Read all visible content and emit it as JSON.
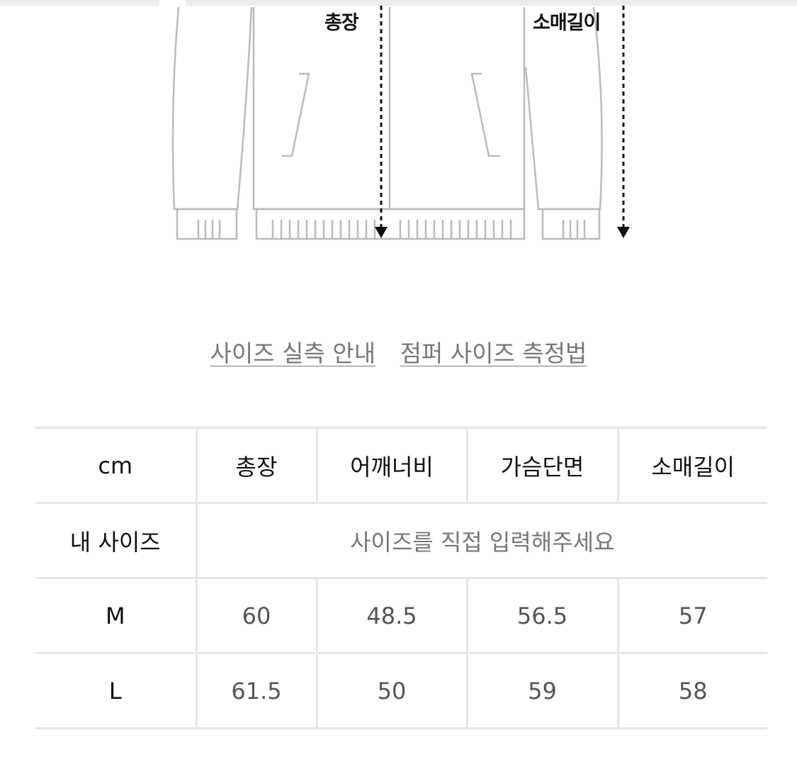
{
  "diagram": {
    "length_label": "총장",
    "sleeve_label": "소매길이"
  },
  "links": {
    "size_guide": "사이즈 실측 안내",
    "measure_guide": "점퍼 사이즈 측정법"
  },
  "table": {
    "headers": [
      "cm",
      "총장",
      "어깨너비",
      "가슴단면",
      "소매길이"
    ],
    "my_size": {
      "label": "내 사이즈",
      "placeholder": "사이즈를 직접 입력해주세요"
    },
    "rows": [
      {
        "size": "M",
        "values": [
          "60",
          "48.5",
          "56.5",
          "57"
        ]
      },
      {
        "size": "L",
        "values": [
          "61.5",
          "50",
          "59",
          "58"
        ]
      }
    ]
  }
}
